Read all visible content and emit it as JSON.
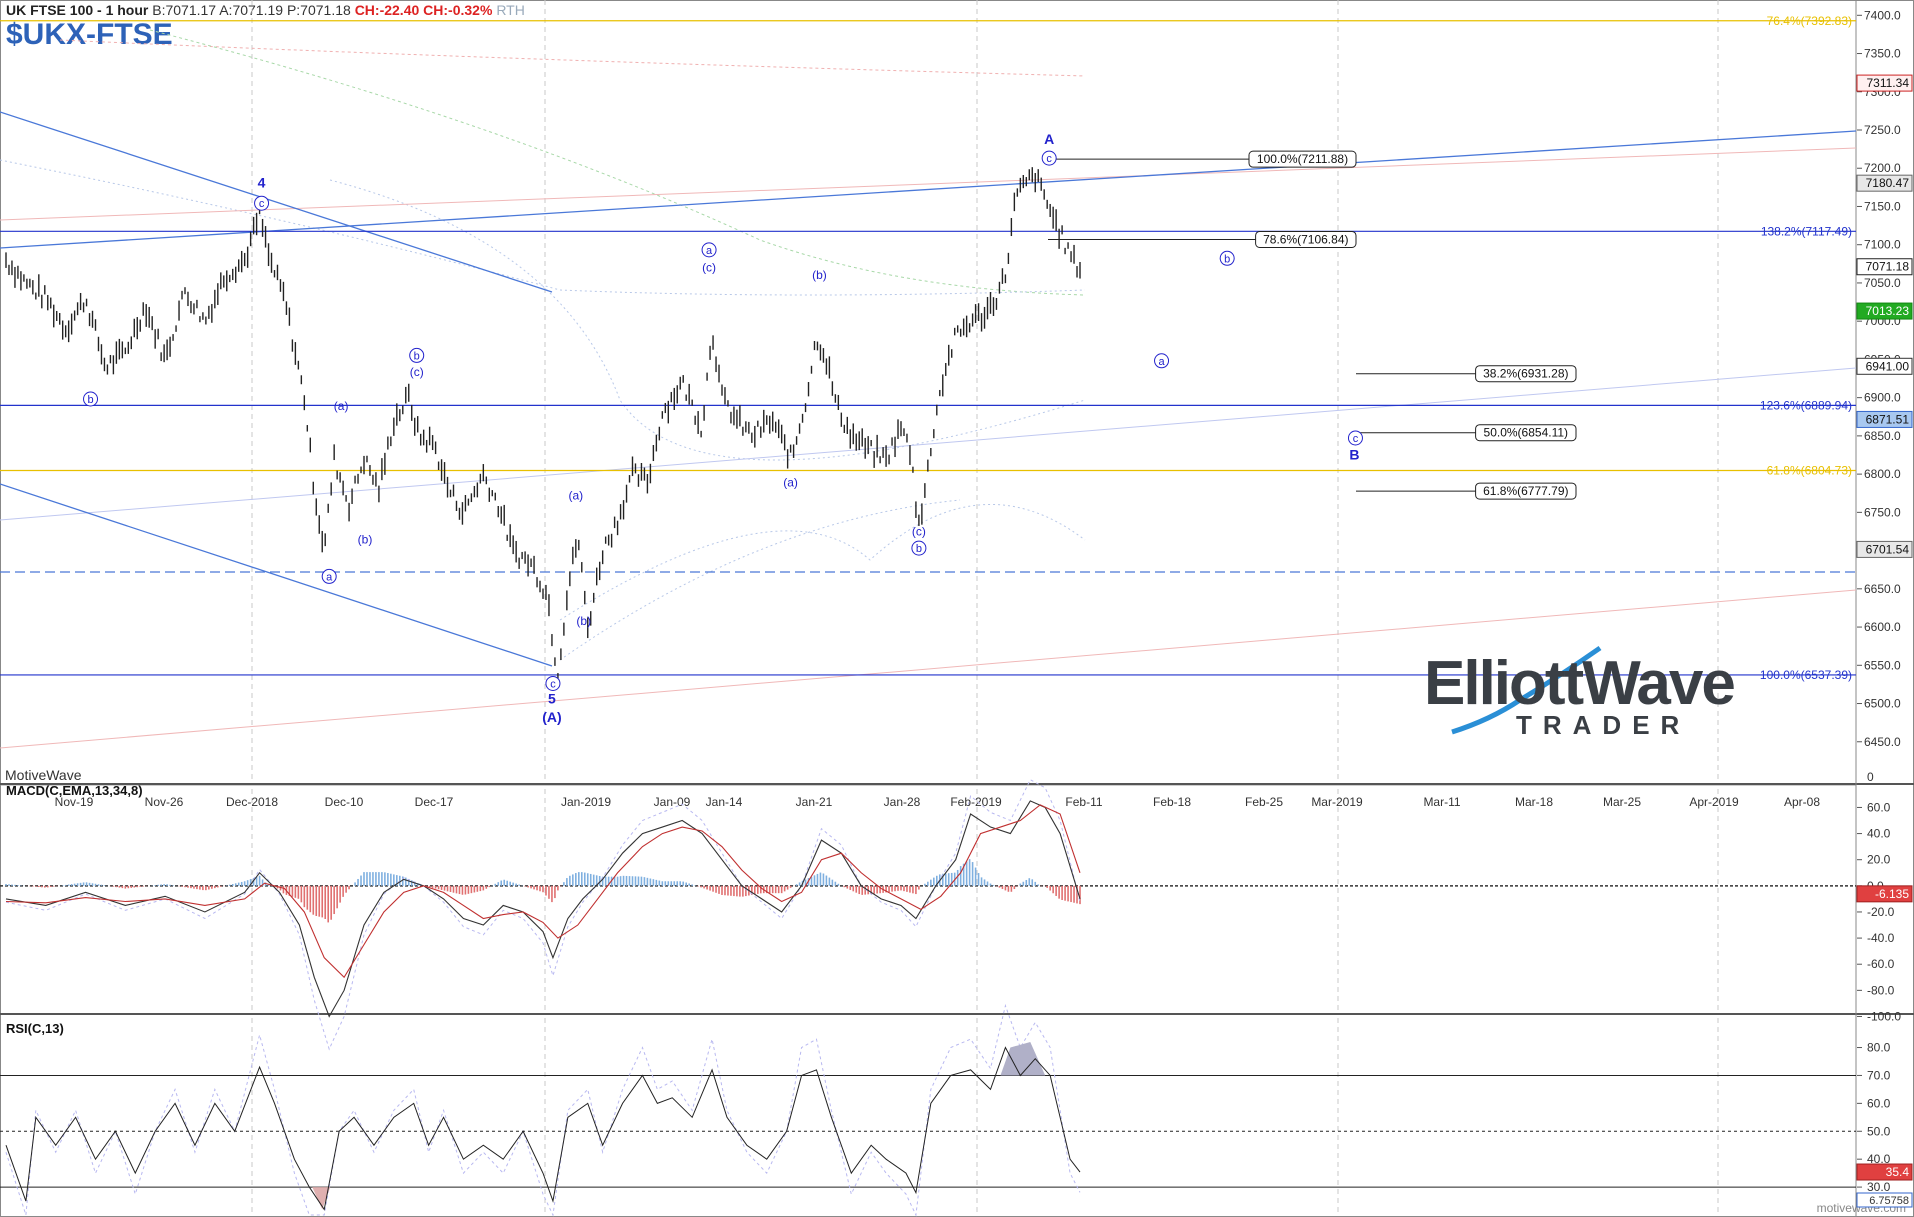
{
  "header": {
    "title": "UK FTSE 100 - 1 hour",
    "bid": "B:7071.17",
    "ask": "A:7071.19",
    "price": "P:7071.18",
    "change": "CH:-22.40",
    "change_pct": "CH:-0.32%",
    "session": "RTH",
    "symbol": "$UKX-FTSE"
  },
  "footer": {
    "platform": "MotiveWave",
    "watermark": "motivewave.com"
  },
  "logo": {
    "top": "ElliottWave",
    "bottom": "TRADER"
  },
  "colors": {
    "wave_label": "#2222cc",
    "channel": "#4a78d8",
    "up_hist": "#7fb0e0",
    "down_hist": "#e07070",
    "fib_gold": "#e8c000",
    "price_bar": "#222222"
  },
  "chart_data": [
    {
      "type": "ohlc",
      "title": "UK FTSE 100 - 1 hour",
      "ylim": [
        6400,
        7420
      ],
      "price_axis_ticks": [
        6450,
        6500,
        6550,
        6600,
        6650,
        6700,
        6750,
        6800,
        6850,
        6900,
        6950,
        7000,
        7050,
        7100,
        7150,
        7200,
        7250,
        7300,
        7350,
        7400
      ],
      "price_axis_labels": [
        "6450.0",
        "6500.0",
        "6550.0",
        "6600.0",
        "6650.0",
        "6700.0",
        "6750.0",
        "6800.0",
        "6850.0",
        "6900.0",
        "6950.0",
        "7000.0",
        "7050.0",
        "7100.0",
        "7150.0",
        "7200.0",
        "7250.0",
        "7300.0",
        "7350.0",
        "7400.0"
      ],
      "date_axis_labels": [
        "Nov-19",
        "Nov-26",
        "Dec-2018",
        "Dec-10",
        "Dec-17",
        "Jan-2019",
        "Jan-09",
        "Jan-14",
        "Jan-21",
        "Jan-28",
        "Feb-2019",
        "Feb-11",
        "Feb-18",
        "Feb-25",
        "Mar-2019",
        "Mar-11",
        "Mar-18",
        "Mar-25",
        "Apr-2019",
        "Apr-08"
      ],
      "price_path": [
        [
          0,
          7080
        ],
        [
          20,
          7050
        ],
        [
          40,
          7030
        ],
        [
          60,
          6990
        ],
        [
          80,
          7030
        ],
        [
          100,
          6940
        ],
        [
          120,
          6960
        ],
        [
          140,
          7020
        ],
        [
          160,
          6950
        ],
        [
          180,
          7040
        ],
        [
          200,
          7000
        ],
        [
          220,
          7060
        ],
        [
          240,
          7080
        ],
        [
          255,
          7140
        ],
        [
          265,
          7080
        ],
        [
          280,
          7030
        ],
        [
          300,
          6900
        ],
        [
          310,
          6780
        ],
        [
          320,
          6700
        ],
        [
          330,
          6820
        ],
        [
          345,
          6760
        ],
        [
          360,
          6820
        ],
        [
          375,
          6780
        ],
        [
          390,
          6870
        ],
        [
          405,
          6900
        ],
        [
          415,
          6850
        ],
        [
          430,
          6840
        ],
        [
          445,
          6780
        ],
        [
          460,
          6750
        ],
        [
          480,
          6800
        ],
        [
          495,
          6760
        ],
        [
          510,
          6700
        ],
        [
          530,
          6680
        ],
        [
          545,
          6640
        ],
        [
          550,
          6580
        ],
        [
          555,
          6540
        ],
        [
          565,
          6650
        ],
        [
          575,
          6720
        ],
        [
          585,
          6600
        ],
        [
          600,
          6700
        ],
        [
          615,
          6740
        ],
        [
          630,
          6800
        ],
        [
          645,
          6790
        ],
        [
          660,
          6880
        ],
        [
          680,
          6920
        ],
        [
          700,
          6860
        ],
        [
          710,
          6990
        ],
        [
          720,
          6900
        ],
        [
          735,
          6870
        ],
        [
          750,
          6850
        ],
        [
          770,
          6870
        ],
        [
          790,
          6820
        ],
        [
          805,
          6900
        ],
        [
          815,
          6980
        ],
        [
          825,
          6950
        ],
        [
          835,
          6890
        ],
        [
          850,
          6850
        ],
        [
          870,
          6830
        ],
        [
          885,
          6820
        ],
        [
          900,
          6860
        ],
        [
          910,
          6830
        ],
        [
          915,
          6760
        ],
        [
          920,
          6740
        ],
        [
          935,
          6880
        ],
        [
          945,
          6940
        ],
        [
          955,
          6980
        ],
        [
          970,
          7000
        ],
        [
          985,
          7010
        ],
        [
          995,
          7030
        ],
        [
          1005,
          7060
        ],
        [
          1015,
          7160
        ],
        [
          1025,
          7180
        ],
        [
          1035,
          7190
        ],
        [
          1045,
          7160
        ],
        [
          1055,
          7130
        ],
        [
          1065,
          7100
        ],
        [
          1075,
          7075
        ],
        [
          1080,
          7071.18
        ]
      ],
      "last_price": 7071.18,
      "level_tags": [
        {
          "label": "7311.34",
          "price": 7311.34,
          "color": "#fff0f0",
          "border": "#cc2222"
        },
        {
          "label": "7180.47",
          "price": 7180.47,
          "color": "#e8e8e8",
          "border": "#666666"
        },
        {
          "label": "7071.18",
          "price": 7071.18,
          "color": "#ffffff",
          "border": "#222222"
        },
        {
          "label": "7013.23",
          "price": 7013.23,
          "color": "#22aa22",
          "border": "#118811"
        },
        {
          "label": "6941.00",
          "price": 6941.0,
          "color": "#ffffff",
          "border": "#333333"
        },
        {
          "label": "6871.51",
          "price": 6871.51,
          "color": "#a8c8f0",
          "border": "#3366cc"
        },
        {
          "label": "6701.54",
          "price": 6701.54,
          "color": "#e8e8e8",
          "border": "#666666"
        }
      ],
      "fib_levels": [
        {
          "label": "76.4%(7392.83)",
          "price": 7392.83,
          "color": "#e8c000"
        },
        {
          "label": "138.2%(7117.49)",
          "price": 7117.49,
          "color": "#2233cc"
        },
        {
          "label": "123.6%(6889.94)",
          "price": 6889.94,
          "color": "#2233cc"
        },
        {
          "label": "61.8%(6804.73)",
          "price": 6804.73,
          "color": "#e8c000"
        },
        {
          "label": "100.0%(6537.39)",
          "price": 6537.39,
          "color": "#2233cc"
        }
      ],
      "target_boxes": [
        {
          "label": "100.0%(7211.88)",
          "price": 7211.88
        },
        {
          "label": "78.6%(7106.84)",
          "price": 7106.84
        },
        {
          "label": "38.2%(6931.28)",
          "price": 6931.28
        },
        {
          "label": "50.0%(6854.11)",
          "price": 6854.11
        },
        {
          "label": "61.8%(6777.79)",
          "price": 6777.79
        }
      ],
      "wave_labels": [
        {
          "t": "4",
          "x": 257,
          "p": 7175,
          "bold": true
        },
        {
          "t": "c",
          "x": 257,
          "p": 7149,
          "circled": true
        },
        {
          "t": "b",
          "x": 85,
          "p": 6893,
          "circled": true
        },
        {
          "t": "a",
          "x": 325,
          "p": 6661,
          "circled": true
        },
        {
          "t": "(a)",
          "x": 337,
          "p": 6884
        },
        {
          "t": "(b)",
          "x": 361,
          "p": 6709
        },
        {
          "t": "b",
          "x": 413,
          "p": 6950,
          "circled": true
        },
        {
          "t": "(c)",
          "x": 413,
          "p": 6928
        },
        {
          "t": "c",
          "x": 550,
          "p": 6521,
          "circled": true
        },
        {
          "t": "5",
          "x": 549,
          "p": 6500,
          "bold": true
        },
        {
          "t": "(A)",
          "x": 549,
          "p": 6476,
          "bold": true
        },
        {
          "t": "(a)",
          "x": 573,
          "p": 6767
        },
        {
          "t": "(b)",
          "x": 581,
          "p": 6603
        },
        {
          "t": "a",
          "x": 707,
          "p": 7088,
          "circled": true
        },
        {
          "t": "(c)",
          "x": 707,
          "p": 7065
        },
        {
          "t": "(b)",
          "x": 818,
          "p": 7055
        },
        {
          "t": "(a)",
          "x": 789,
          "p": 6784
        },
        {
          "t": "(c)",
          "x": 918,
          "p": 6720
        },
        {
          "t": "b",
          "x": 918,
          "p": 6698,
          "circled": true
        },
        {
          "t": "A",
          "x": 1049,
          "p": 7232,
          "bold": true
        },
        {
          "t": "c",
          "x": 1049,
          "p": 7208,
          "circled": true
        },
        {
          "t": "b",
          "x": 1228,
          "p": 7077,
          "circled": true
        },
        {
          "t": "a",
          "x": 1162,
          "p": 6943,
          "circled": true
        },
        {
          "t": "c",
          "x": 1357,
          "p": 6842,
          "circled": true
        },
        {
          "t": "B",
          "x": 1356,
          "p": 6819,
          "bold": true
        }
      ]
    },
    {
      "type": "line",
      "title": "MACD(C,EMA,13,34,8)",
      "ylim": [
        -105,
        68
      ],
      "axis_labels": [
        "60.0",
        "40.0",
        "20.0",
        "0.0",
        "-20.0",
        "-40.0",
        "-60.0",
        "-80.0",
        "-100.0"
      ],
      "axis_values": [
        60,
        40,
        20,
        0,
        -20,
        -40,
        -60,
        -80,
        -100
      ],
      "last_value": "-6.135",
      "macd_path": [
        [
          0,
          -10
        ],
        [
          40,
          -15
        ],
        [
          80,
          -5
        ],
        [
          120,
          -15
        ],
        [
          160,
          -8
        ],
        [
          200,
          -20
        ],
        [
          240,
          -5
        ],
        [
          255,
          10
        ],
        [
          275,
          -5
        ],
        [
          295,
          -30
        ],
        [
          310,
          -70
        ],
        [
          325,
          -100
        ],
        [
          340,
          -80
        ],
        [
          360,
          -30
        ],
        [
          380,
          -5
        ],
        [
          400,
          5
        ],
        [
          420,
          0
        ],
        [
          440,
          -10
        ],
        [
          460,
          -25
        ],
        [
          480,
          -30
        ],
        [
          500,
          -15
        ],
        [
          520,
          -20
        ],
        [
          540,
          -35
        ],
        [
          550,
          -55
        ],
        [
          565,
          -25
        ],
        [
          580,
          -10
        ],
        [
          600,
          5
        ],
        [
          620,
          25
        ],
        [
          640,
          40
        ],
        [
          660,
          45
        ],
        [
          680,
          50
        ],
        [
          700,
          40
        ],
        [
          720,
          20
        ],
        [
          740,
          0
        ],
        [
          760,
          -10
        ],
        [
          780,
          -20
        ],
        [
          800,
          0
        ],
        [
          820,
          35
        ],
        [
          840,
          25
        ],
        [
          860,
          0
        ],
        [
          880,
          -10
        ],
        [
          900,
          -15
        ],
        [
          915,
          -25
        ],
        [
          935,
          0
        ],
        [
          955,
          20
        ],
        [
          970,
          55
        ],
        [
          990,
          45
        ],
        [
          1010,
          40
        ],
        [
          1030,
          65
        ],
        [
          1045,
          60
        ],
        [
          1060,
          40
        ],
        [
          1080,
          -10
        ]
      ],
      "signal_path": [
        [
          0,
          -12
        ],
        [
          40,
          -13
        ],
        [
          80,
          -9
        ],
        [
          120,
          -12
        ],
        [
          160,
          -10
        ],
        [
          200,
          -15
        ],
        [
          240,
          -10
        ],
        [
          260,
          2
        ],
        [
          280,
          -2
        ],
        [
          300,
          -20
        ],
        [
          320,
          -55
        ],
        [
          340,
          -70
        ],
        [
          360,
          -45
        ],
        [
          380,
          -20
        ],
        [
          400,
          -5
        ],
        [
          420,
          0
        ],
        [
          440,
          -5
        ],
        [
          460,
          -15
        ],
        [
          480,
          -25
        ],
        [
          500,
          -22
        ],
        [
          520,
          -20
        ],
        [
          540,
          -28
        ],
        [
          555,
          -40
        ],
        [
          575,
          -30
        ],
        [
          595,
          -10
        ],
        [
          615,
          10
        ],
        [
          640,
          30
        ],
        [
          660,
          40
        ],
        [
          680,
          45
        ],
        [
          700,
          42
        ],
        [
          720,
          30
        ],
        [
          740,
          12
        ],
        [
          760,
          -2
        ],
        [
          780,
          -12
        ],
        [
          800,
          -5
        ],
        [
          820,
          20
        ],
        [
          840,
          25
        ],
        [
          860,
          10
        ],
        [
          880,
          -2
        ],
        [
          900,
          -10
        ],
        [
          920,
          -18
        ],
        [
          940,
          -8
        ],
        [
          960,
          10
        ],
        [
          980,
          40
        ],
        [
          1000,
          45
        ],
        [
          1020,
          50
        ],
        [
          1040,
          62
        ],
        [
          1060,
          55
        ],
        [
          1080,
          10
        ]
      ]
    },
    {
      "type": "line",
      "title": "RSI(C,13)",
      "ylim": [
        20,
        87
      ],
      "axis_labels": [
        "80.0",
        "70.0",
        "60.0",
        "50.0",
        "40.0",
        "30.0"
      ],
      "axis_values": [
        80,
        70,
        60,
        50,
        40,
        30
      ],
      "bands": [
        70,
        50,
        30
      ],
      "last_value": "35.4",
      "last_small": "6.75758",
      "rsi_path": [
        [
          0,
          45
        ],
        [
          20,
          25
        ],
        [
          30,
          55
        ],
        [
          50,
          45
        ],
        [
          70,
          55
        ],
        [
          90,
          40
        ],
        [
          110,
          50
        ],
        [
          130,
          35
        ],
        [
          150,
          50
        ],
        [
          170,
          60
        ],
        [
          190,
          45
        ],
        [
          210,
          60
        ],
        [
          230,
          50
        ],
        [
          255,
          73
        ],
        [
          270,
          60
        ],
        [
          290,
          40
        ],
        [
          305,
          30
        ],
        [
          320,
          22
        ],
        [
          335,
          50
        ],
        [
          350,
          55
        ],
        [
          370,
          45
        ],
        [
          390,
          55
        ],
        [
          410,
          60
        ],
        [
          425,
          45
        ],
        [
          440,
          55
        ],
        [
          460,
          40
        ],
        [
          480,
          45
        ],
        [
          500,
          40
        ],
        [
          520,
          50
        ],
        [
          540,
          35
        ],
        [
          550,
          25
        ],
        [
          565,
          55
        ],
        [
          585,
          60
        ],
        [
          600,
          45
        ],
        [
          620,
          60
        ],
        [
          640,
          70
        ],
        [
          655,
          60
        ],
        [
          670,
          62
        ],
        [
          690,
          55
        ],
        [
          710,
          72
        ],
        [
          725,
          55
        ],
        [
          745,
          45
        ],
        [
          765,
          40
        ],
        [
          785,
          50
        ],
        [
          800,
          70
        ],
        [
          815,
          72
        ],
        [
          830,
          55
        ],
        [
          850,
          35
        ],
        [
          870,
          45
        ],
        [
          885,
          40
        ],
        [
          905,
          35
        ],
        [
          915,
          28
        ],
        [
          930,
          60
        ],
        [
          950,
          70
        ],
        [
          970,
          72
        ],
        [
          990,
          65
        ],
        [
          1005,
          80
        ],
        [
          1020,
          70
        ],
        [
          1035,
          76
        ],
        [
          1050,
          70
        ],
        [
          1060,
          55
        ],
        [
          1070,
          40
        ],
        [
          1080,
          35.4
        ]
      ]
    }
  ]
}
